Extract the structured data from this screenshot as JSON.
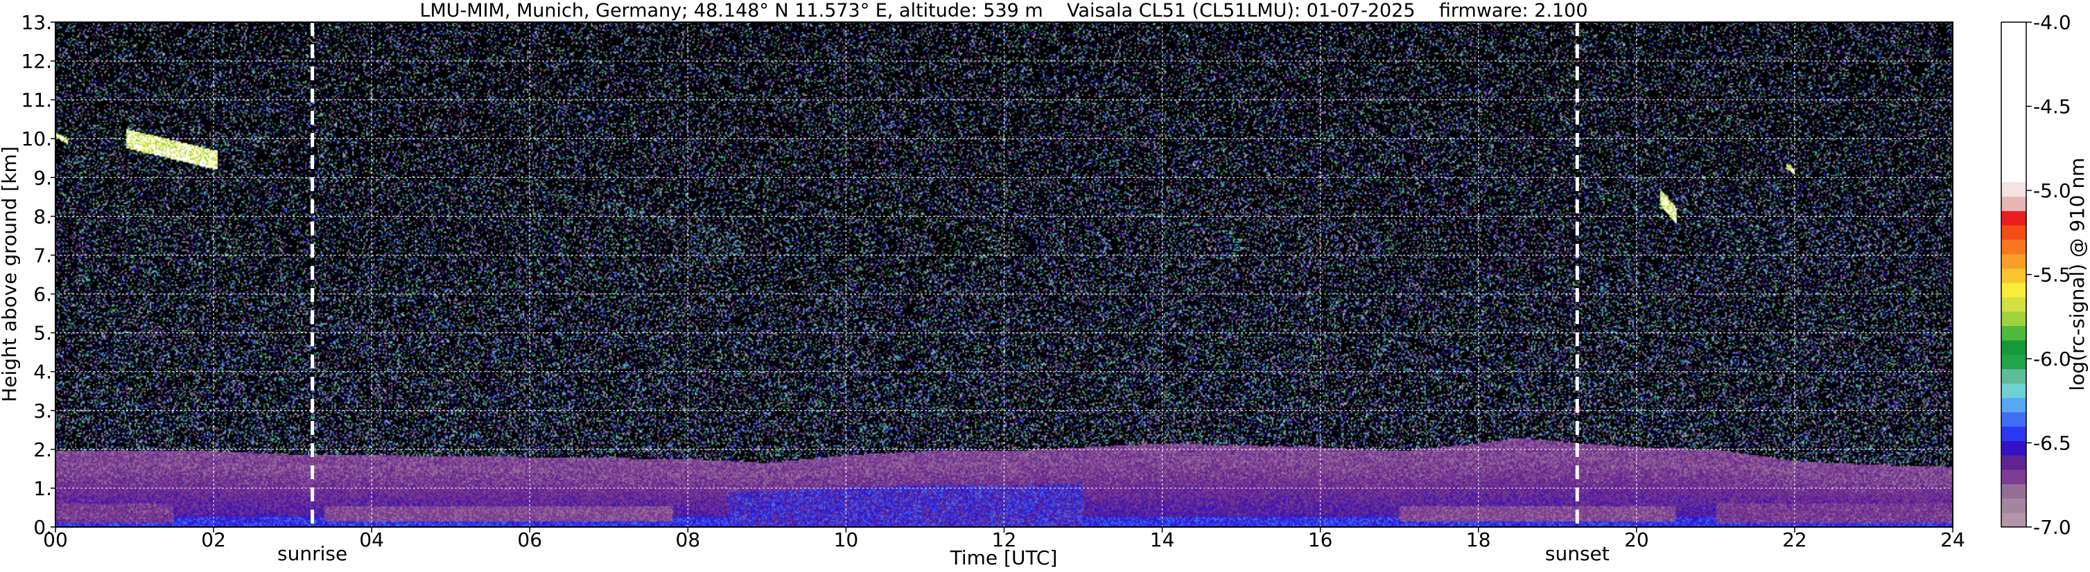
{
  "title": "LMU-MIM, Munich, Germany; 48.148° N 11.573° E, altitude: 539 m    Vaisala CL51 (CL51LMU): 01-07-2025    firmware: 2.100",
  "chart_data": {
    "type": "heatmap",
    "title": "LMU-MIM, Munich, Germany; 48.148° N 11.573° E, altitude: 539 m    Vaisala CL51 (CL51LMU): 01-07-2025    firmware: 2.100",
    "xlabel": "Time [UTC]",
    "ylabel": "Height above ground [km]",
    "xlim": [
      0,
      24
    ],
    "ylim": [
      0,
      13
    ],
    "x_ticks": [
      0,
      2,
      4,
      6,
      8,
      10,
      12,
      14,
      16,
      18,
      20,
      22,
      24
    ],
    "x_tick_labels": [
      "00",
      "02",
      "04",
      "06",
      "08",
      "10",
      "12",
      "14",
      "16",
      "18",
      "20",
      "22",
      "24"
    ],
    "y_ticks": [
      0,
      1,
      2,
      3,
      4,
      5,
      6,
      7,
      8,
      9,
      10,
      11,
      12,
      13
    ],
    "y_tick_labels": [
      "0.",
      "1.",
      "2.",
      "3.",
      "4.",
      "5.",
      "6.",
      "7.",
      "8.",
      "9.",
      "10.",
      "11.",
      "12.",
      "13."
    ],
    "grid": true,
    "colorbar": {
      "label": "log(rc-signal) @ 910 nm",
      "range": [
        -7.0,
        -4.0
      ],
      "ticks": [
        -7.0,
        -6.5,
        -6.0,
        -5.5,
        -5.0,
        -4.5,
        -4.0
      ],
      "tick_labels": [
        "-7.0",
        "-6.5",
        "-6.0",
        "-5.5",
        "-5.0",
        "-4.5",
        "-4.0"
      ],
      "palette": [
        "#b495ac",
        "#a385a0",
        "#956e98",
        "#7d3c93",
        "#5e2491",
        "#3513c3",
        "#2c37f0",
        "#3f6df4",
        "#57a7f5",
        "#6fd0d4",
        "#5fbc9a",
        "#22a34c",
        "#159a3a",
        "#4eba3e",
        "#9ed33d",
        "#d3e043",
        "#f8ee39",
        "#f9c531",
        "#fb9e28",
        "#f87720",
        "#f34d17",
        "#ec1d1d",
        "#e9b6b6",
        "#f3e3e3"
      ]
    },
    "events": [
      {
        "label": "sunrise",
        "time": 3.25
      },
      {
        "label": "sunset",
        "time": 19.25
      }
    ],
    "features": {
      "boundary_layer_top_km": [
        [
          0,
          1.95
        ],
        [
          2,
          1.95
        ],
        [
          3.25,
          1.85
        ],
        [
          4,
          1.85
        ],
        [
          6,
          1.8
        ],
        [
          8,
          1.75
        ],
        [
          9,
          1.65
        ],
        [
          10,
          1.85
        ],
        [
          11,
          1.95
        ],
        [
          12,
          1.95
        ],
        [
          13,
          2.05
        ],
        [
          14,
          2.15
        ],
        [
          15,
          2.1
        ],
        [
          16,
          2.05
        ],
        [
          17,
          1.95
        ],
        [
          18,
          2.15
        ],
        [
          18.5,
          2.3
        ],
        [
          19,
          2.2
        ],
        [
          20,
          2.05
        ],
        [
          21,
          2.0
        ],
        [
          22,
          1.7
        ],
        [
          23,
          1.6
        ],
        [
          24,
          1.55
        ]
      ],
      "cirrus_clouds": [
        {
          "time_start": 0.9,
          "time_end": 2.05,
          "base_km": 9.3,
          "top_km": 10.0
        },
        {
          "time_start": 0.0,
          "time_end": 0.15,
          "base_km": 9.9,
          "top_km": 10.1
        },
        {
          "time_start": 20.3,
          "time_end": 20.5,
          "base_km": 7.9,
          "top_km": 8.5
        },
        {
          "time_start": 21.9,
          "time_end": 22.0,
          "base_km": 9.1,
          "top_km": 9.3
        }
      ]
    }
  }
}
